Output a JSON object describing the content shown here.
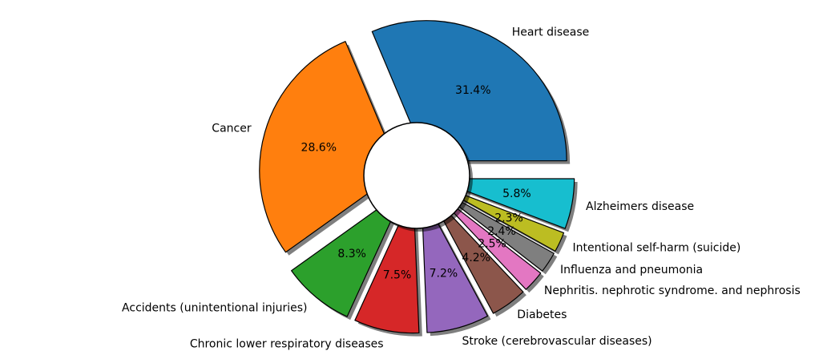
{
  "chart_data": {
    "type": "pie",
    "style": "exploded donut with shadow, black edges",
    "start_angle_deg": 0,
    "direction": "counterclockwise",
    "categories": [
      "Heart disease",
      "Cancer",
      "Accidents (unintentional injuries)",
      "Chronic lower respiratory diseases",
      "Stroke (cerebrovascular diseases)",
      "Diabetes",
      "Nephritis. nephrotic syndrome. and nephrosis",
      "Influenza and pneumonia",
      "Intentional self-harm (suicide)",
      "Alzheimers disease"
    ],
    "values": [
      31.4,
      28.6,
      8.3,
      7.5,
      7.2,
      4.2,
      2.5,
      2.4,
      2.3,
      5.8
    ],
    "percent_labels": [
      "31.4%",
      "28.6%",
      "8.3%",
      "7.5%",
      "7.2%",
      "4.2%",
      "2.5%",
      "2.4%",
      "2.3%",
      "5.8%"
    ],
    "colors": [
      "#1f77b4",
      "#ff7f0e",
      "#2ca02c",
      "#d62728",
      "#9467bd",
      "#8c564b",
      "#e377c2",
      "#7f7f7f",
      "#bcbd22",
      "#17becf"
    ],
    "legend": false,
    "grid": false
  }
}
